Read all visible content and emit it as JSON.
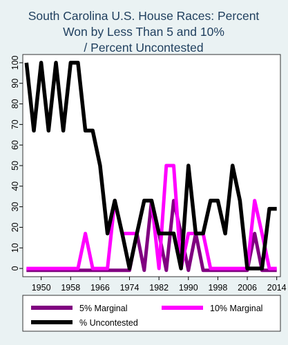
{
  "chart_data": {
    "type": "line",
    "title": [
      "South Carolina U.S. House Races: Percent",
      "Won by Less Than 5 and 10%",
      "/ Percent Uncontested"
    ],
    "xlabel": "",
    "ylabel": "",
    "x": [
      1946,
      1948,
      1950,
      1952,
      1954,
      1956,
      1958,
      1960,
      1962,
      1964,
      1966,
      1968,
      1970,
      1972,
      1974,
      1976,
      1978,
      1980,
      1982,
      1984,
      1986,
      1988,
      1990,
      1992,
      1994,
      1996,
      1998,
      2000,
      2002,
      2004,
      2006,
      2008,
      2010,
      2012,
      2014
    ],
    "xticks": [
      1950,
      1958,
      1966,
      1974,
      1982,
      1990,
      1998,
      2006,
      2014
    ],
    "xlim": [
      1945,
      2015
    ],
    "yticks": [
      0,
      10,
      20,
      30,
      40,
      50,
      60,
      70,
      80,
      90,
      100
    ],
    "ylim": [
      -4,
      104
    ],
    "grid": false,
    "legend_position": "bottom",
    "series": [
      {
        "name": "5% Marginal",
        "color": "#800080",
        "values": [
          0,
          0,
          0,
          0,
          0,
          0,
          0,
          0,
          0,
          0,
          0,
          0,
          0,
          0,
          0,
          17,
          0,
          33,
          17,
          0,
          33,
          17,
          0,
          17,
          0,
          0,
          0,
          0,
          0,
          0,
          0,
          17,
          0,
          0,
          0
        ]
      },
      {
        "name": "10% Marginal",
        "color": "#ff00ff",
        "values": [
          0,
          0,
          0,
          0,
          0,
          0,
          0,
          0,
          17,
          0,
          0,
          0,
          33,
          17,
          17,
          17,
          33,
          33,
          0,
          50,
          50,
          0,
          17,
          17,
          17,
          0,
          0,
          0,
          0,
          0,
          0,
          33,
          17,
          0,
          0
        ]
      },
      {
        "name": "% Uncontested",
        "color": "#000000",
        "values": [
          100,
          67,
          100,
          67,
          100,
          67,
          100,
          100,
          67,
          67,
          50,
          17,
          33,
          17,
          0,
          17,
          33,
          33,
          17,
          17,
          17,
          0,
          50,
          17,
          17,
          33,
          33,
          17,
          50,
          33,
          0,
          0,
          0,
          29,
          29
        ]
      }
    ]
  }
}
